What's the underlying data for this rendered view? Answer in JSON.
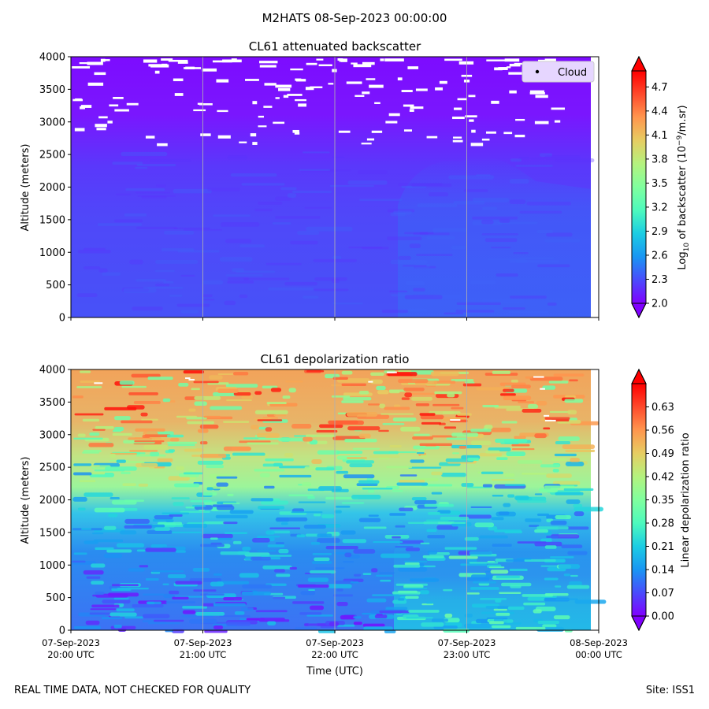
{
  "figure": {
    "suptitle": "M2HATS 08-Sep-2023 00:00:00",
    "footer_left": "REAL TIME DATA, NOT CHECKED FOR QUALITY",
    "footer_right": "Site: ISS1"
  },
  "colors": {
    "rainbow": [
      "#8000ff",
      "#4a4bfc",
      "#1996f3",
      "#1bcde3",
      "#4dfabd",
      "#80ff9e",
      "#b4f27e",
      "#e6cd62",
      "#ff964e",
      "#ff4a2c",
      "#ff0000"
    ],
    "cloud_marker": "#000000",
    "grid": "#b0b0b0"
  },
  "chart_data": [
    {
      "type": "heatmap",
      "title": "CL61 attenuated backscatter",
      "xlabel": "",
      "ylabel": "Altitude (meters)",
      "ylim": [
        0,
        4000
      ],
      "yticks": [
        "0",
        "500",
        "1000",
        "1500",
        "2000",
        "2500",
        "3000",
        "3500",
        "4000"
      ],
      "xlim_hours": [
        20,
        24
      ],
      "xticks": [
        "20:00",
        "21:00",
        "22:00",
        "23:00",
        "00:00"
      ],
      "legend": [
        {
          "label": "Cloud",
          "marker": "dot",
          "location": "top-right"
        }
      ],
      "colorbar": {
        "label_prefix": "Log",
        "label_sub": "10",
        "label_mid": " of backscatter (10",
        "label_sup": "−9",
        "label_suffix": "/m.sr)",
        "range": [
          2.0,
          4.9
        ],
        "ticks": [
          "2.0",
          "2.3",
          "2.6",
          "2.9",
          "3.2",
          "3.5",
          "3.8",
          "4.1",
          "4.4",
          "4.7"
        ],
        "extend": "both"
      },
      "approximate_profile": [
        {
          "altitude": 0,
          "value_20_22h": 2.45,
          "value_22_24h": 2.7
        },
        {
          "altitude": 1000,
          "value_20_22h": 2.4,
          "value_22_24h": 2.6
        },
        {
          "altitude": 2000,
          "value_20_22h": 2.3,
          "value_22_24h": 2.55
        },
        {
          "altitude": 2500,
          "value_20_22h": 2.1,
          "value_22_24h": 2.3
        },
        {
          "altitude": 3000,
          "value_20_22h": 2.0,
          "value_22_24h": 2.0
        },
        {
          "altitude": 4000,
          "value_20_22h": 2.0,
          "value_22_24h": 2.0
        }
      ],
      "note": "white gaps (missing data) scattered above ~2700 m"
    },
    {
      "type": "heatmap",
      "title": "CL61 depolarization ratio",
      "xlabel": "Time (UTC)",
      "ylabel": "Altitude (meters)",
      "ylim": [
        0,
        4000
      ],
      "yticks": [
        "0",
        "500",
        "1000",
        "1500",
        "2000",
        "2500",
        "3000",
        "3500",
        "4000"
      ],
      "xlim_hours": [
        20,
        24
      ],
      "xticks": [
        "20:00",
        "21:00",
        "22:00",
        "23:00",
        "00:00"
      ],
      "xtick_labels": [
        {
          "date": "07-Sep-2023",
          "time": "20:00 UTC"
        },
        {
          "date": "07-Sep-2023",
          "time": "21:00 UTC"
        },
        {
          "date": "07-Sep-2023",
          "time": "22:00 UTC"
        },
        {
          "date": "07-Sep-2023",
          "time": "23:00 UTC"
        },
        {
          "date": "08-Sep-2023",
          "time": "00:00 UTC"
        }
      ],
      "colorbar": {
        "label": "Linear depolarization ratio",
        "range": [
          0.0,
          0.7
        ],
        "ticks": [
          "0.00",
          "0.07",
          "0.14",
          "0.21",
          "0.28",
          "0.35",
          "0.42",
          "0.49",
          "0.56",
          "0.63"
        ],
        "extend": "both"
      },
      "approximate_profile": [
        {
          "altitude": 0,
          "value_20_22h": 0.1,
          "value_22_24h": 0.16
        },
        {
          "altitude": 1000,
          "value_20_22h": 0.12,
          "value_22_24h": 0.16
        },
        {
          "altitude": 1800,
          "value_20_22h": 0.2,
          "value_22_24h": 0.18
        },
        {
          "altitude": 2500,
          "value_20_22h": 0.42,
          "value_22_24h": 0.4
        },
        {
          "altitude": 3200,
          "value_20_22h": 0.5,
          "value_22_24h": 0.45
        },
        {
          "altitude": 4000,
          "value_20_22h": 0.52,
          "value_22_24h": 0.48
        }
      ]
    }
  ]
}
